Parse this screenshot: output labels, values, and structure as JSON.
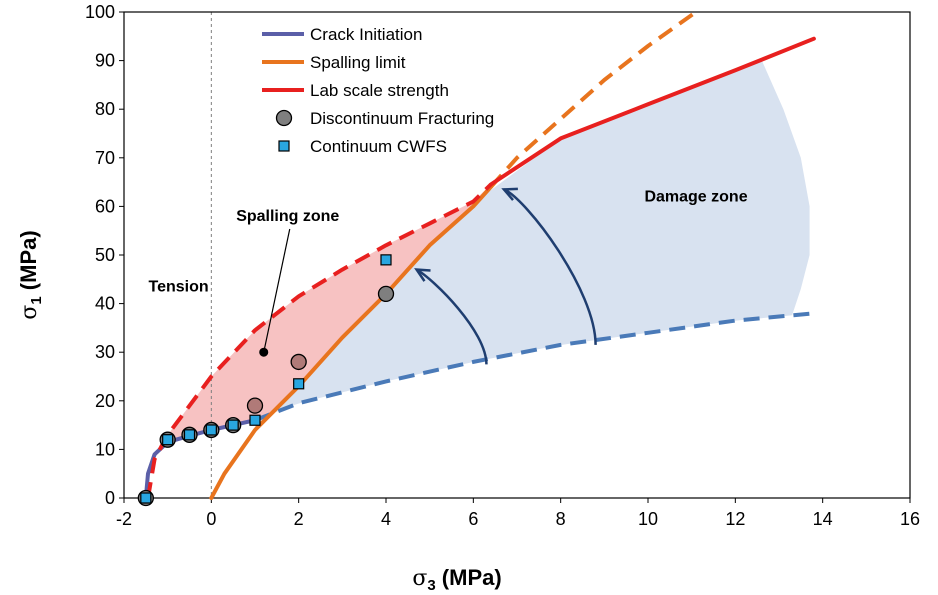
{
  "chart_data": {
    "type": "line",
    "xlabel_symbol": "σ",
    "xlabel_sub": "3",
    "xlabel_unit": " (MPa)",
    "ylabel_symbol": "σ",
    "ylabel_sub": "1",
    "ylabel_unit": " (MPa)",
    "xlim": [
      -2,
      16
    ],
    "ylim": [
      0,
      100
    ],
    "x_ticks": [
      -2,
      0,
      2,
      4,
      6,
      8,
      10,
      12,
      14,
      16
    ],
    "y_ticks": [
      0,
      10,
      20,
      30,
      40,
      50,
      60,
      70,
      80,
      90,
      100
    ],
    "legend_position": "top-left",
    "series": [
      {
        "name": "Crack Initiation",
        "style": "solid-then-dashed",
        "color": "#4a7ab8",
        "x": [
          -1.5,
          -1.45,
          -1.3,
          -1,
          -0.5,
          0,
          0.5,
          1,
          2,
          4,
          6,
          8,
          10,
          12,
          13.8
        ],
        "y": [
          0,
          5,
          9,
          11.5,
          12.8,
          14,
          15,
          16,
          19.5,
          24,
          28,
          31.5,
          34,
          36.5,
          38
        ],
        "solid_until_x": 1
      },
      {
        "name": "Spalling limit",
        "style": "solid-then-dashed",
        "color": "#e8741e",
        "x": [
          0,
          0.3,
          1,
          2,
          3,
          4,
          5,
          6,
          6.4,
          7,
          8,
          9,
          10,
          11.1
        ],
        "y": [
          0,
          5,
          14,
          23,
          33,
          42,
          52,
          60,
          64,
          70,
          78,
          86,
          93,
          100
        ],
        "solid_until_x": 6.4
      },
      {
        "name": "Lab scale strength",
        "style": "dashed-then-solid",
        "color": "#e8201f",
        "x": [
          -1.45,
          -1.3,
          -1,
          -0.5,
          0,
          1,
          2,
          3,
          4,
          5,
          6,
          6.4,
          8,
          10,
          12,
          13.8
        ],
        "y": [
          0,
          8,
          13,
          19,
          25,
          34.5,
          41.5,
          47,
          52,
          56.5,
          61,
          64.5,
          74,
          81,
          88,
          94.5
        ],
        "solid_from_x": 6.4
      },
      {
        "name": "Discontinuum Fracturing",
        "marker": "circle",
        "color": "#7f7f7f",
        "x": [
          -1.5,
          -1,
          -0.5,
          0,
          0.5,
          1,
          2,
          4
        ],
        "y": [
          0,
          12,
          13,
          14,
          15,
          19,
          28,
          42
        ]
      },
      {
        "name": "Continuum CWFS",
        "marker": "square",
        "color": "#29a6e0",
        "x": [
          -1.5,
          -1,
          -0.5,
          0,
          0.5,
          1,
          2,
          4
        ],
        "y": [
          0,
          12,
          13,
          14,
          15,
          16,
          23.5,
          49
        ]
      }
    ],
    "zones": [
      {
        "label": "Spalling zone",
        "color": "#f7c2c2",
        "label_at": [
          1.75,
          57
        ],
        "pointer_to": [
          1.2,
          30
        ]
      },
      {
        "label": "Damage zone",
        "color": "#d8e2f0",
        "label_at": [
          11.1,
          61
        ]
      },
      {
        "label": "Tension",
        "label_at": [
          -0.75,
          42.5
        ]
      }
    ],
    "arrows": [
      {
        "from": [
          6.3,
          27.5
        ],
        "to": [
          4.7,
          47
        ],
        "color": "#1f3e70"
      },
      {
        "from": [
          8.8,
          31.5
        ],
        "to": [
          6.7,
          63.5
        ],
        "color": "#1f3e70"
      }
    ],
    "reference_lines": [
      {
        "axis": "x",
        "value": 0,
        "style": "dotted",
        "color": "#7f7f7f"
      }
    ]
  }
}
